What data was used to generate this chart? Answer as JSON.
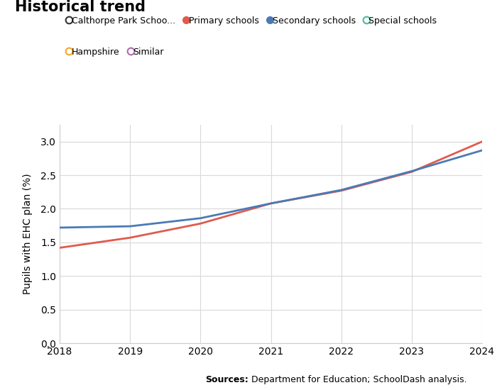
{
  "title": "Historical trend",
  "ylabel": "Pupils with EHC plan (%)",
  "source_bold": "Sources:",
  "source_rest": " Department for Education; SchoolDash analysis.",
  "years": [
    2018,
    2019,
    2020,
    2021,
    2022,
    2023,
    2024
  ],
  "primary_schools": [
    1.42,
    1.57,
    1.78,
    2.08,
    2.27,
    2.55,
    3.0
  ],
  "secondary_schools": [
    1.72,
    1.74,
    1.86,
    2.08,
    2.28,
    2.56,
    2.87
  ],
  "primary_color": "#e05a4e",
  "secondary_color": "#4a7ab5",
  "ylim": [
    0.0,
    3.25
  ],
  "yticks": [
    0.0,
    0.5,
    1.0,
    1.5,
    2.0,
    2.5,
    3.0
  ],
  "legend_entries": [
    {
      "label": "Calthorpe Park Schoo...",
      "color": "#333333",
      "filled": false
    },
    {
      "label": "Primary schools",
      "color": "#e05a4e",
      "filled": true
    },
    {
      "label": "Secondary schools",
      "color": "#4a7ab5",
      "filled": true
    },
    {
      "label": "Special schools",
      "color": "#4db89e",
      "filled": false
    },
    {
      "label": "Hampshire",
      "color": "#f5a623",
      "filled": false
    },
    {
      "label": "Similar",
      "color": "#b06ab3",
      "filled": false
    }
  ],
  "background_color": "#ffffff",
  "grid_color": "#d9d9d9",
  "title_fontsize": 15,
  "axis_fontsize": 10,
  "tick_fontsize": 10,
  "legend_fontsize": 9,
  "source_fontsize": 9
}
